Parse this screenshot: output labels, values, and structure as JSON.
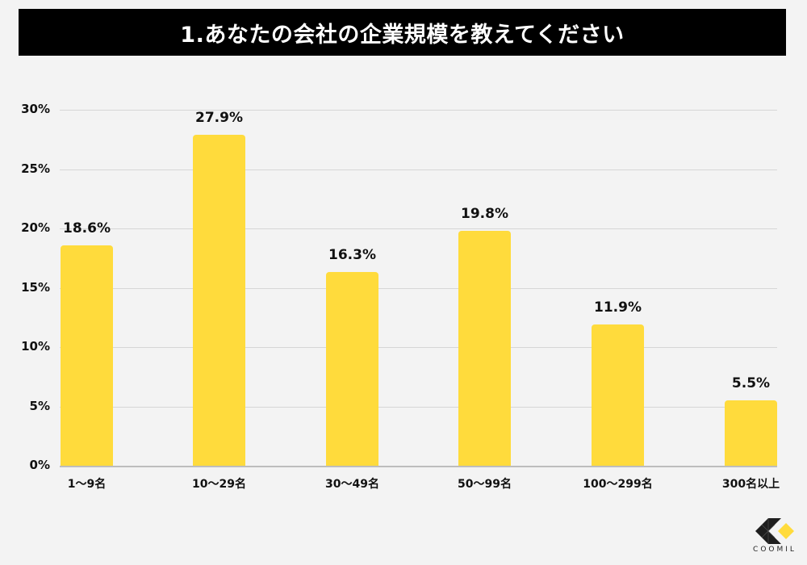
{
  "title": "1.あなたの会社の企業規模を教えてください",
  "colors": {
    "bar": "#ffdb3c",
    "title_bg": "#000000",
    "title_text": "#ffffff",
    "background": "#f3f3f3"
  },
  "y_ticks": [
    "30%",
    "25%",
    "20%",
    "15%",
    "10%",
    "5%",
    "0%"
  ],
  "bars": [
    {
      "category": "1〜9名",
      "value": 18.6,
      "label": "18.6%"
    },
    {
      "category": "10〜29名",
      "value": 27.9,
      "label": "27.9%"
    },
    {
      "category": "30〜49名",
      "value": 16.3,
      "label": "16.3%"
    },
    {
      "category": "50〜99名",
      "value": 19.8,
      "label": "19.8%"
    },
    {
      "category": "100〜299名",
      "value": 11.9,
      "label": "11.9%"
    },
    {
      "category": "300名以上",
      "value": 5.5,
      "label": "5.5%"
    }
  ],
  "logo": {
    "text": "COOMIL"
  },
  "chart_data": {
    "type": "bar",
    "title": "1.あなたの会社の企業規模を教えてください",
    "categories": [
      "1〜9名",
      "10〜29名",
      "30〜49名",
      "50〜99名",
      "100〜299名",
      "300名以上"
    ],
    "values": [
      18.6,
      27.9,
      16.3,
      19.8,
      11.9,
      5.5
    ],
    "value_labels": [
      "18.6%",
      "27.9%",
      "16.3%",
      "19.8%",
      "11.9%",
      "5.5%"
    ],
    "xlabel": "",
    "ylabel": "",
    "ylim": [
      0,
      30
    ],
    "yticks": [
      "0%",
      "5%",
      "10%",
      "15%",
      "20%",
      "25%",
      "30%"
    ],
    "grid": true,
    "legend": "none"
  }
}
